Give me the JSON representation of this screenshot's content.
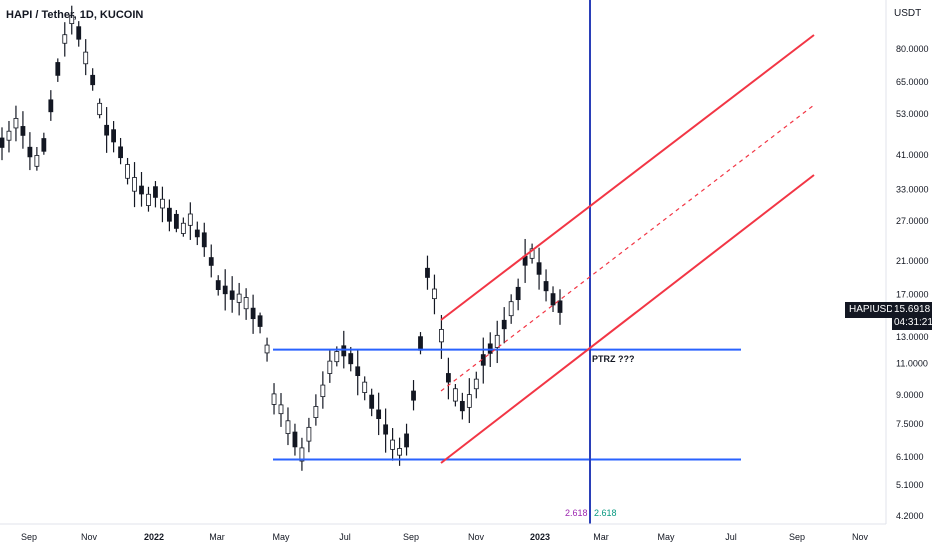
{
  "header": {
    "title": "HAPI / Tether, 1D, KUCOIN",
    "currency": "USDT"
  },
  "price_tag": {
    "symbol": "HAPIUSDT",
    "price": "15.6918",
    "countdown": "04:31:21"
  },
  "annotation": "PTRZ ???",
  "fib": {
    "left": "2.618",
    "right": "2.618",
    "left_color": "#9c27b0",
    "right_color": "#089981"
  },
  "colors": {
    "horizontal": "#2962ff",
    "channel": "#f23645",
    "vertical": "#2a3fb8",
    "candles": "#131722"
  },
  "chart_data": {
    "type": "line",
    "title": "HAPI / Tether, 1D, KUCOIN",
    "y_scale": "log",
    "ylim": [
      4.0,
      100.0
    ],
    "x_ticks": [
      "Sep",
      "Nov",
      "2022",
      "Mar",
      "May",
      "Jul",
      "Sep",
      "Nov",
      "2023",
      "Mar",
      "May",
      "Jul",
      "Sep",
      "Nov"
    ],
    "y_ticks": [
      "80.0000",
      "65.0000",
      "53.0000",
      "41.0000",
      "33.0000",
      "27.0000",
      "21.0000",
      "17.0000",
      "13.0000",
      "11.0000",
      "9.0000",
      "7.5000",
      "6.1000",
      "5.1000",
      "4.2000"
    ],
    "series": [
      {
        "values": [
          44,
          46,
          50,
          48,
          42,
          40,
          44,
          56,
          70,
          85,
          96,
          88,
          76,
          66,
          55,
          48,
          46,
          42,
          37,
          34,
          33,
          31,
          32,
          30,
          28,
          27,
          26,
          27,
          25,
          24,
          21,
          18,
          17.5,
          17,
          16.5,
          16,
          15,
          14.2,
          12,
          8.8,
          8.2,
          7.4,
          6.8,
          6.2,
          7.0,
          8.2,
          9.3,
          10.8,
          11.5,
          12.0,
          11.3,
          10.4,
          9.4,
          8.6,
          8.0,
          7.2,
          6.6,
          6.3,
          6.8,
          9.0,
          12.5,
          19.5,
          17.0,
          13.0,
          10.0,
          9.0,
          8.4,
          8.7,
          9.6,
          11.2,
          12.0,
          12.6,
          14.0,
          15.5,
          17.0,
          21.0,
          22.0,
          20.0,
          18.0,
          16.5,
          15.7
        ]
      }
    ],
    "drawings": {
      "support_level": 6.0,
      "resistance_level": 12.0,
      "vertical_line": "Feb 2023",
      "channel": "ascending parallel channel with dashed midline"
    },
    "last_price": 15.6918
  }
}
